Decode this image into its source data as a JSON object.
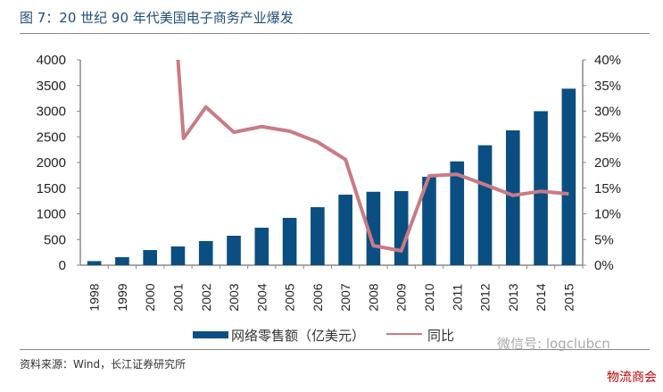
{
  "title": "图 7：20 世纪 90 年代美国电子商务产业爆发",
  "source": "资料来源：Wind，长江证券研究所",
  "watermark": "微信号: logclubcn",
  "brand": "物流商会",
  "chart_data": {
    "type": "bar+line",
    "categories": [
      "1998",
      "1999",
      "2000",
      "2001",
      "2002",
      "2003",
      "2004",
      "2005",
      "2006",
      "2007",
      "2008",
      "2009",
      "2010",
      "2011",
      "2012",
      "2013",
      "2014",
      "2015"
    ],
    "series": [
      {
        "name": "网络零售额（亿美元）",
        "type": "bar",
        "axis": "left",
        "color": "#0b4f82",
        "values": [
          80,
          156,
          295,
          365,
          470,
          574,
          730,
          922,
          1130,
          1374,
          1430,
          1443,
          1722,
          2022,
          2336,
          2626,
          3000,
          3438
        ]
      },
      {
        "name": "同比",
        "type": "line",
        "axis": "right",
        "color": "#c97b84",
        "x": [
          2001,
          2001.2,
          2002,
          2003,
          2004,
          2005,
          2006,
          2007,
          2008,
          2009,
          2010,
          2011,
          2012,
          2013,
          2014,
          2015
        ],
        "values": [
          40,
          24.7,
          30.8,
          25.9,
          27,
          26.1,
          24,
          20.6,
          3.8,
          2.8,
          17.4,
          17.7,
          15.7,
          13.6,
          14.4,
          13.9
        ]
      }
    ],
    "y_left": {
      "range": [
        0,
        4000
      ],
      "ticks": [
        "0",
        "500",
        "1000",
        "1500",
        "2000",
        "2500",
        "3000",
        "3500",
        "4000"
      ]
    },
    "y_right": {
      "range": [
        0,
        40
      ],
      "ticks": [
        "0%",
        "5%",
        "10%",
        "15%",
        "20%",
        "25%",
        "30%",
        "35%",
        "40%"
      ]
    },
    "grid": false,
    "legend": "bottom"
  }
}
